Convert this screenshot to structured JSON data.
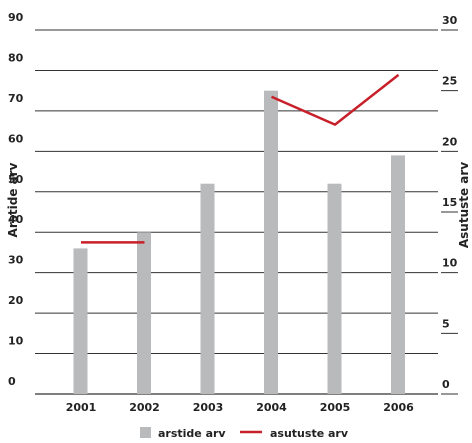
{
  "chart_data": {
    "type": "bar",
    "categories": [
      "2001",
      "2002",
      "2003",
      "2004",
      "2005",
      "2006"
    ],
    "series": [
      {
        "name": "arstide arv",
        "type": "bar",
        "axis": "left",
        "values": [
          36,
          40,
          52,
          75,
          52,
          59
        ]
      },
      {
        "name": "asutuste arv",
        "type": "line",
        "axis": "right",
        "values": [
          null,
          null,
          null,
          24.5,
          22.2,
          26.3
        ],
        "segments": [
          {
            "from": "2001",
            "to": "2002",
            "value": 12.5
          }
        ]
      }
    ],
    "ylabel": "Arstide arv",
    "ylabel_right": "Asutuste arv",
    "ylim": [
      0,
      90
    ],
    "ylim_right": [
      0,
      30
    ],
    "yticks": [
      0,
      10,
      20,
      30,
      40,
      50,
      60,
      70,
      80,
      90
    ],
    "yticks_right": [
      0,
      5,
      10,
      15,
      20,
      25,
      30
    ],
    "grid": true,
    "legend": "bottom",
    "colors": {
      "bar": "#b9babc",
      "line": "#c8202a",
      "grid": "#333333"
    }
  }
}
